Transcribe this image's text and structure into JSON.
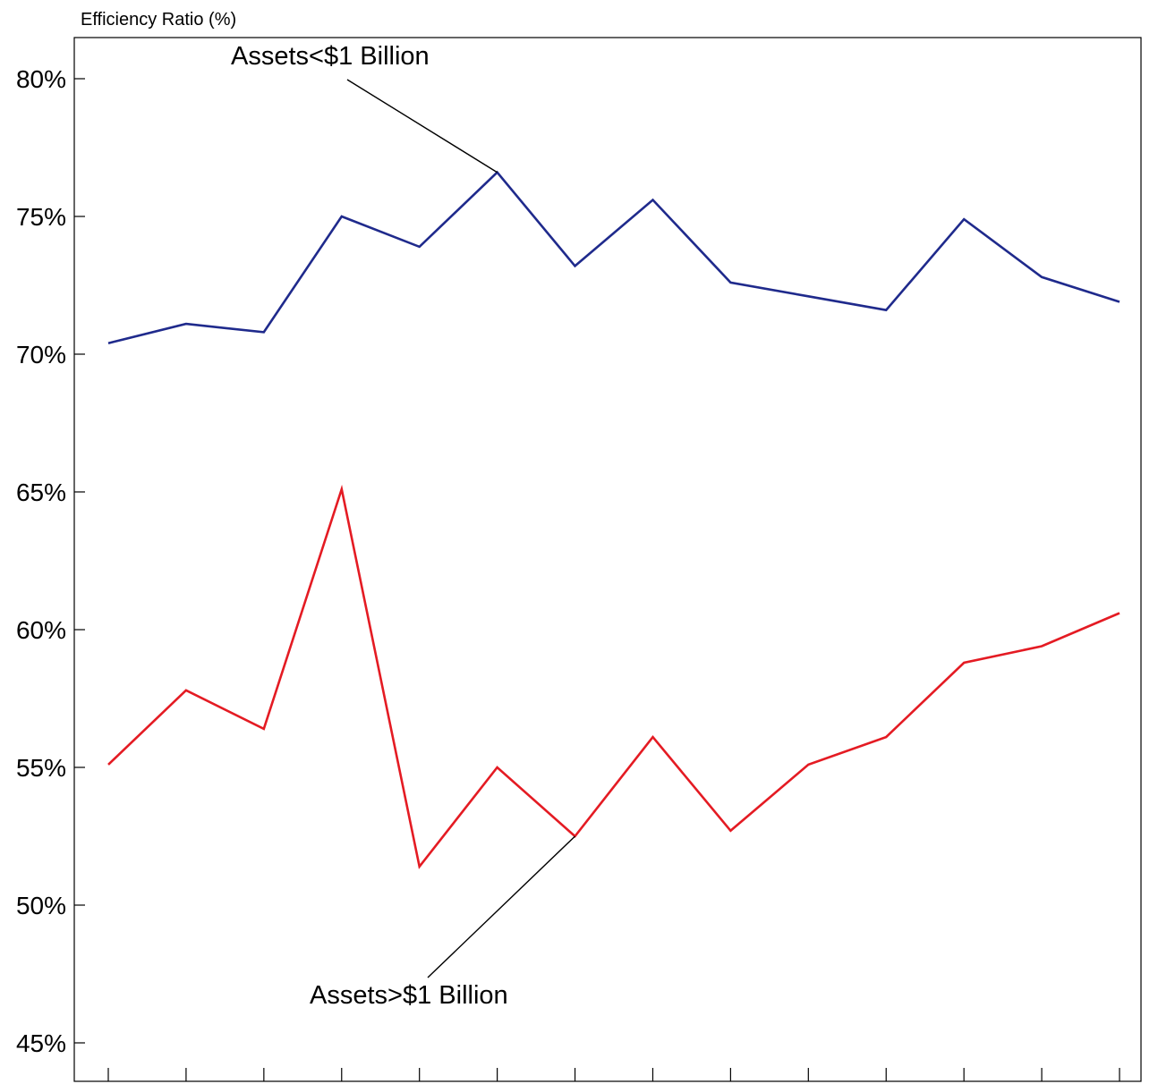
{
  "chart_data": {
    "type": "line",
    "ylabel": "Efficiency Ratio (%)",
    "ylim": [
      43.5,
      81.5
    ],
    "yticks": [
      45,
      50,
      55,
      60,
      65,
      70,
      75,
      80
    ],
    "ytick_labels": [
      "45%",
      "50%",
      "55%",
      "60%",
      "65%",
      "70%",
      "75%",
      "80%"
    ],
    "x_count": 14,
    "grid": false,
    "series": [
      {
        "name": "Assets<$1 Billion",
        "color": "#1f2a8c",
        "values": [
          70.4,
          71.1,
          70.8,
          75.0,
          73.9,
          76.6,
          73.2,
          75.6,
          72.6,
          72.1,
          71.6,
          74.9,
          72.8,
          71.9
        ]
      },
      {
        "name": "Assets>$1 Billion",
        "color": "#e41b23",
        "values": [
          55.1,
          57.8,
          56.4,
          65.1,
          51.4,
          55.0,
          52.5,
          56.1,
          52.7,
          55.1,
          56.1,
          58.8,
          59.4,
          60.6
        ]
      }
    ],
    "annotations": [
      {
        "text": "Assets<$1 Billion",
        "series": 0,
        "point_index": 5
      },
      {
        "text": "Assets>$1 Billion",
        "series": 1,
        "point_index": 6
      }
    ]
  }
}
